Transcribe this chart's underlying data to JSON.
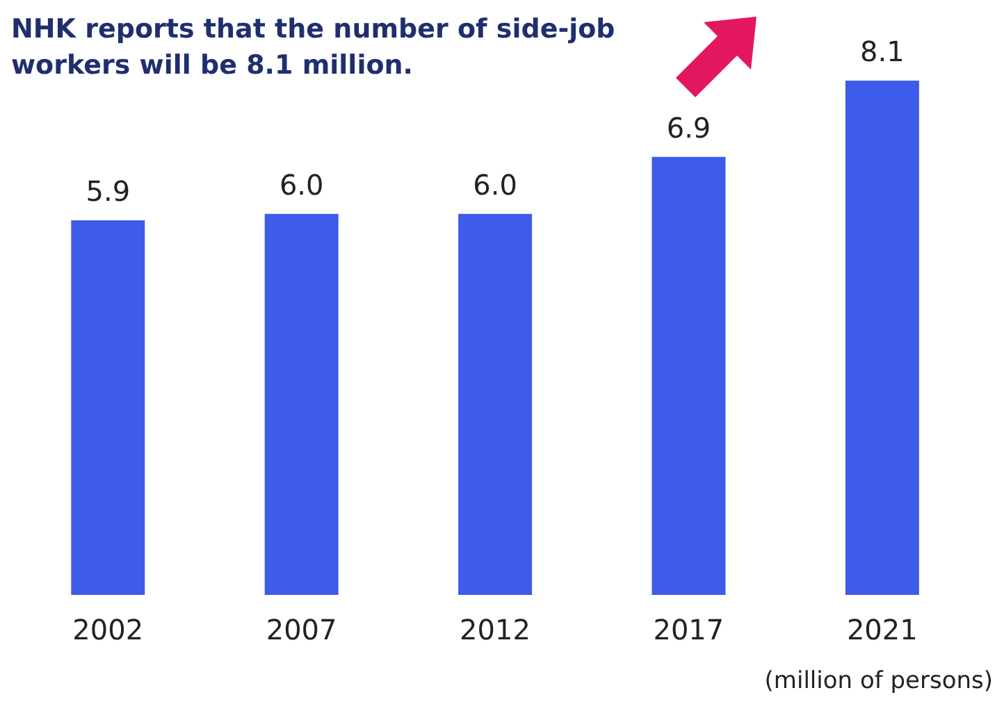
{
  "chart_data": {
    "type": "bar",
    "title": "NHK reports that the number of side-job workers will be 8.1 million.",
    "categories": [
      "2002",
      "2007",
      "2012",
      "2017",
      "2021"
    ],
    "values": [
      5.9,
      6.0,
      6.0,
      6.9,
      8.1
    ],
    "color": "#3f5be9",
    "value_labels": [
      "5.9",
      "6.0",
      "6.0",
      "6.9",
      "8.1"
    ],
    "annotations": [
      "(million of persons)"
    ]
  }
}
